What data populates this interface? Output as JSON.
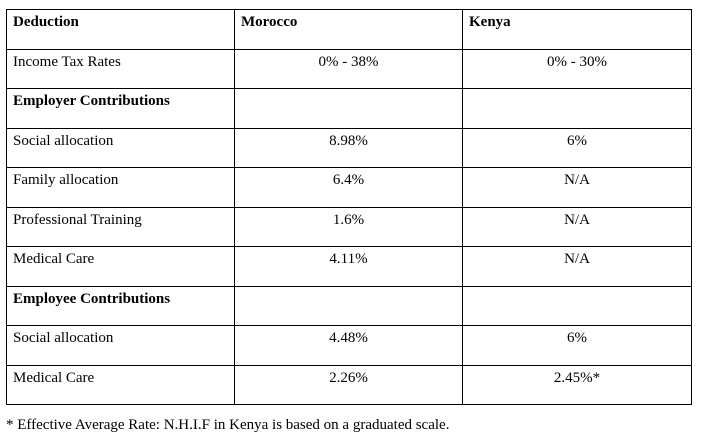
{
  "table": {
    "headers": [
      "Deduction",
      "Morocco",
      "Kenya"
    ],
    "rows": [
      {
        "label": "Income Tax Rates",
        "morocco": "0% - 38%",
        "kenya": "0% - 30%"
      },
      {
        "label": "Employer Contributions",
        "morocco": "",
        "kenya": ""
      },
      {
        "label": "Social allocation",
        "morocco": "8.98%",
        "kenya": "6%"
      },
      {
        "label": "Family allocation",
        "morocco": "6.4%",
        "kenya": "N/A"
      },
      {
        "label": "Professional Training",
        "morocco": "1.6%",
        "kenya": "N/A"
      },
      {
        "label": "Medical Care",
        "morocco": "4.11%",
        "kenya": "N/A"
      },
      {
        "label": "Employee Contributions",
        "morocco": "",
        "kenya": ""
      },
      {
        "label": "Social allocation",
        "morocco": "4.48%",
        "kenya": "6%"
      },
      {
        "label": "Medical Care",
        "morocco": "2.26%",
        "kenya": "2.45%*"
      }
    ]
  },
  "footnote": "* Effective Average Rate: N.H.I.F in Kenya is based on a graduated scale."
}
